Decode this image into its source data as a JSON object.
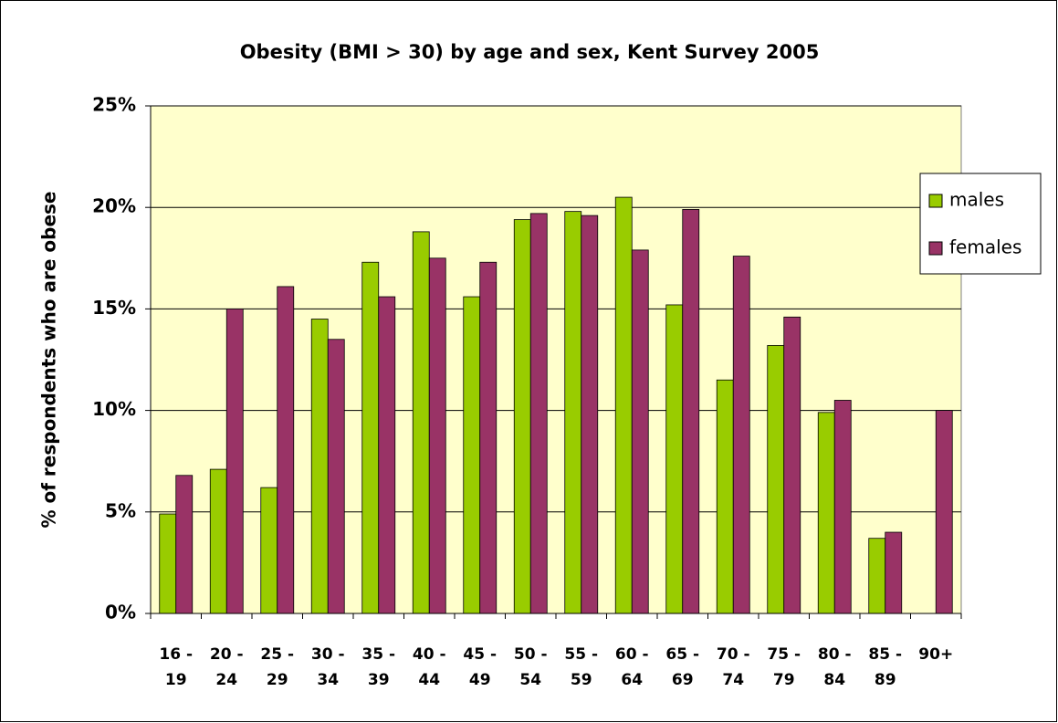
{
  "chart_data": {
    "type": "bar",
    "title": "Obesity (BMI > 30) by age and sex, Kent Survey 2005",
    "y_label": "% of respondents who are obese",
    "categories": [
      "16 - 19",
      "20 - 24",
      "25 - 29",
      "30 - 34",
      "35 - 39",
      "40 - 44",
      "45 - 49",
      "50 - 54",
      "55 - 59",
      "60 - 64",
      "65 - 69",
      "70 - 74",
      "75 - 79",
      "80 - 84",
      "85 - 89",
      "90+"
    ],
    "series": [
      {
        "name": "males",
        "color": "#99cc00",
        "values": [
          4.9,
          7.1,
          6.2,
          14.5,
          17.3,
          18.8,
          15.6,
          19.4,
          19.8,
          20.5,
          15.2,
          11.5,
          13.2,
          9.9,
          3.7,
          0
        ]
      },
      {
        "name": "females",
        "color": "#993366",
        "values": [
          6.8,
          15.0,
          16.1,
          13.5,
          15.6,
          17.5,
          17.3,
          19.7,
          19.6,
          17.9,
          19.9,
          17.6,
          14.6,
          10.5,
          4.0,
          10.0
        ]
      }
    ],
    "ylim": [
      0,
      25
    ],
    "yticks": [
      {
        "value": 0,
        "label": "0%"
      },
      {
        "value": 5,
        "label": "5%"
      },
      {
        "value": 10,
        "label": "10%"
      },
      {
        "value": 15,
        "label": "15%"
      },
      {
        "value": 20,
        "label": "20%"
      },
      {
        "value": 25,
        "label": "25%"
      }
    ],
    "grid": true,
    "legend": "right",
    "plot_background": "#ffffcc"
  }
}
